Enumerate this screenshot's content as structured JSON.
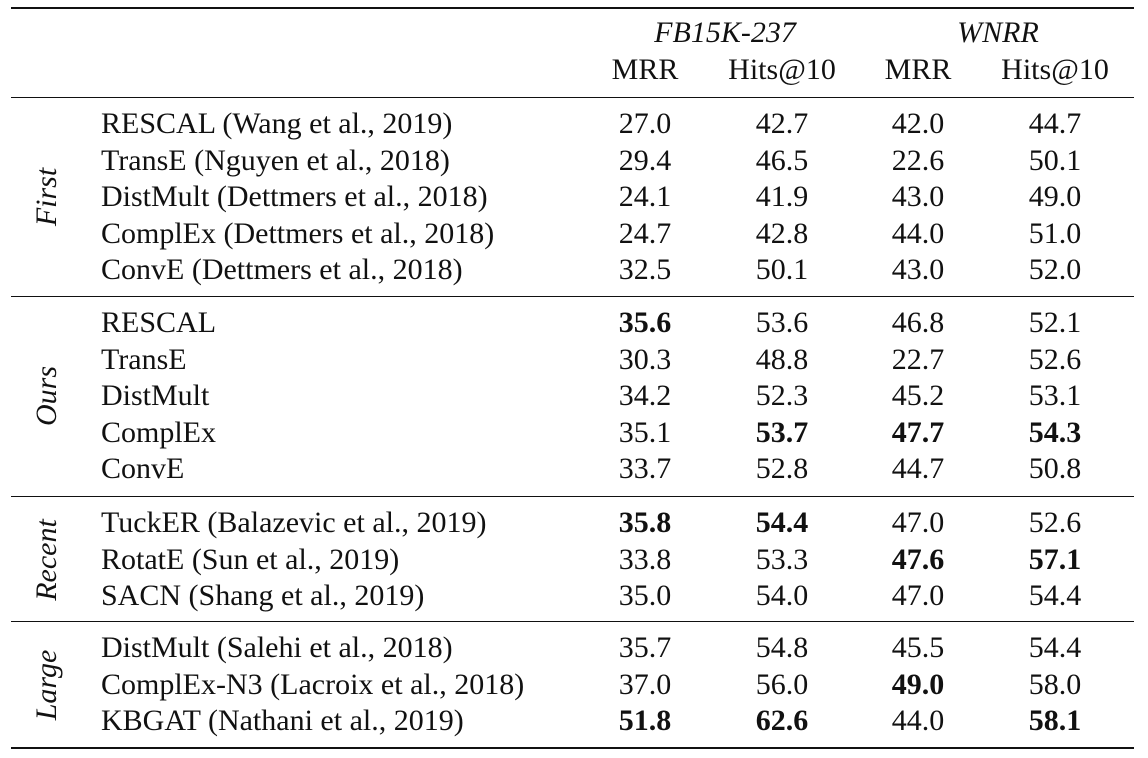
{
  "datasets": [
    "FB15K-237",
    "WNRR"
  ],
  "columns": [
    "MRR",
    "Hits@10",
    "MRR",
    "Hits@10"
  ],
  "groups": [
    {
      "label": "First",
      "rows": [
        {
          "model": "RESCAL (Wang et al., 2019)",
          "values": [
            "27.0",
            "42.7",
            "42.0",
            "44.7"
          ],
          "bold": [
            false,
            false,
            false,
            false
          ]
        },
        {
          "model": "TransE (Nguyen et al., 2018)",
          "values": [
            "29.4",
            "46.5",
            "22.6",
            "50.1"
          ],
          "bold": [
            false,
            false,
            false,
            false
          ]
        },
        {
          "model": "DistMult (Dettmers et al., 2018)",
          "values": [
            "24.1",
            "41.9",
            "43.0",
            "49.0"
          ],
          "bold": [
            false,
            false,
            false,
            false
          ]
        },
        {
          "model": "ComplEx (Dettmers et al., 2018)",
          "values": [
            "24.7",
            "42.8",
            "44.0",
            "51.0"
          ],
          "bold": [
            false,
            false,
            false,
            false
          ]
        },
        {
          "model": "ConvE (Dettmers et al., 2018)",
          "values": [
            "32.5",
            "50.1",
            "43.0",
            "52.0"
          ],
          "bold": [
            false,
            false,
            false,
            false
          ]
        }
      ]
    },
    {
      "label": "Ours",
      "rows": [
        {
          "model": "RESCAL",
          "values": [
            "35.6",
            "53.6",
            "46.8",
            "52.1"
          ],
          "bold": [
            true,
            false,
            false,
            false
          ]
        },
        {
          "model": "TransE",
          "values": [
            "30.3",
            "48.8",
            "22.7",
            "52.6"
          ],
          "bold": [
            false,
            false,
            false,
            false
          ]
        },
        {
          "model": "DistMult",
          "values": [
            "34.2",
            "52.3",
            "45.2",
            "53.1"
          ],
          "bold": [
            false,
            false,
            false,
            false
          ]
        },
        {
          "model": "ComplEx",
          "values": [
            "35.1",
            "53.7",
            "47.7",
            "54.3"
          ],
          "bold": [
            false,
            true,
            true,
            true
          ]
        },
        {
          "model": "ConvE",
          "values": [
            "33.7",
            "52.8",
            "44.7",
            "50.8"
          ],
          "bold": [
            false,
            false,
            false,
            false
          ]
        }
      ]
    },
    {
      "label": "Recent",
      "rows": [
        {
          "model": "TuckER (Balazevic et al., 2019)",
          "values": [
            "35.8",
            "54.4",
            "47.0",
            "52.6"
          ],
          "bold": [
            true,
            true,
            false,
            false
          ]
        },
        {
          "model": "RotatE (Sun et al., 2019)",
          "values": [
            "33.8",
            "53.3",
            "47.6",
            "57.1"
          ],
          "bold": [
            false,
            false,
            true,
            true
          ]
        },
        {
          "model": "SACN (Shang et al., 2019)",
          "values": [
            "35.0",
            "54.0",
            "47.0",
            "54.4"
          ],
          "bold": [
            false,
            false,
            false,
            false
          ]
        }
      ]
    },
    {
      "label": "Large",
      "rows": [
        {
          "model": "DistMult (Salehi et al., 2018)",
          "values": [
            "35.7",
            "54.8",
            "45.5",
            "54.4"
          ],
          "bold": [
            false,
            false,
            false,
            false
          ]
        },
        {
          "model": "ComplEx-N3 (Lacroix et al., 2018)",
          "values": [
            "37.0",
            "56.0",
            "49.0",
            "58.0"
          ],
          "bold": [
            false,
            false,
            true,
            false
          ]
        },
        {
          "model": "KBGAT (Nathani et al., 2019)",
          "values": [
            "51.8",
            "62.6",
            "44.0",
            "58.1"
          ],
          "bold": [
            true,
            true,
            false,
            true
          ]
        }
      ]
    }
  ]
}
